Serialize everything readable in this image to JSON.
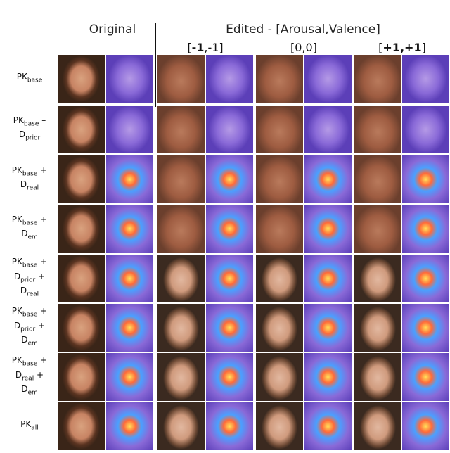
{
  "header": {
    "original": "Original",
    "edited": "Edited - [Arousal,Valence]",
    "columns": [
      {
        "strong": "-1",
        "rest": ",-1]",
        "open": "["
      },
      {
        "open": "[0,0]"
      },
      {
        "strong": "+1,+1",
        "rest": "]",
        "open": "["
      }
    ]
  },
  "rows": [
    {
      "terms": [
        {
          "main": "PK",
          "sub": "base"
        }
      ]
    },
    {
      "terms": [
        {
          "main": "PK",
          "sub": "base",
          "op": "–"
        },
        {
          "main": "D",
          "sub": "prior"
        }
      ]
    },
    {
      "terms": [
        {
          "main": "PK",
          "sub": "base",
          "op": "+"
        },
        {
          "main": "D",
          "sub": "real"
        }
      ]
    },
    {
      "terms": [
        {
          "main": "PK",
          "sub": "base",
          "op": "+"
        },
        {
          "main": "D",
          "sub": "em"
        }
      ]
    },
    {
      "terms": [
        {
          "main": "PK",
          "sub": "base",
          "op": "+"
        },
        {
          "main": "D",
          "sub": "prior",
          "op": "+"
        },
        {
          "main": "D",
          "sub": "real"
        }
      ]
    },
    {
      "terms": [
        {
          "main": "PK",
          "sub": "base",
          "op": "+"
        },
        {
          "main": "D",
          "sub": "prior",
          "op": "+"
        },
        {
          "main": "D",
          "sub": "em"
        }
      ]
    },
    {
      "terms": [
        {
          "main": "PK",
          "sub": "base",
          "op": "+"
        },
        {
          "main": "D",
          "sub": "real",
          "op": "+"
        },
        {
          "main": "D",
          "sub": "em"
        }
      ]
    },
    {
      "terms": [
        {
          "main": "PK",
          "sub": "all"
        }
      ]
    }
  ]
}
